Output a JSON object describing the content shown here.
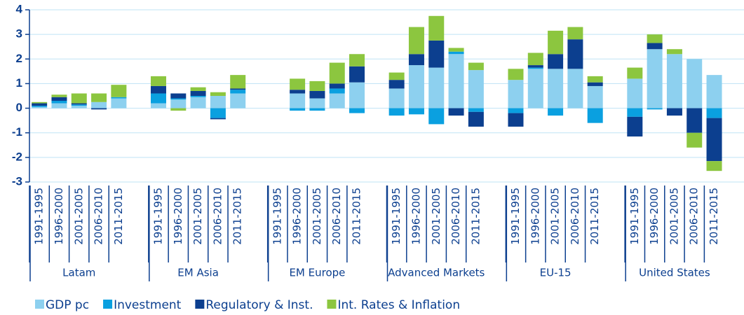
{
  "chart_data": {
    "type": "bar",
    "stacked": true,
    "groups": [
      "Latam",
      "EM Asia",
      "EM Europe",
      "Advanced Markets",
      "EU-15",
      "United States"
    ],
    "categories": [
      "1991-1995",
      "1996-2000",
      "2001-2005",
      "2006-2010",
      "2011-2015",
      "1991-1995",
      "1996-2000",
      "2001-2005",
      "2006-2010",
      "2011-2015",
      "1991-1995",
      "1996-2000",
      "2001-2005",
      "2006-2010",
      "2011-2015",
      "1991-1995",
      "1996-2000",
      "2001-2005",
      "2006-2010",
      "2011-2015",
      "1991-1995",
      "1996-2000",
      "2001-2005",
      "2006-2010",
      "2011-2015",
      "1991-1995",
      "1996-2000",
      "2001-2005",
      "2006-2010",
      "2011-2015"
    ],
    "series": [
      {
        "name": "GDP pc",
        "color": "#8dd0ef",
        "values": [
          0.05,
          0.2,
          0.1,
          0.25,
          0.4,
          0.2,
          0.35,
          0.45,
          0.5,
          0.6,
          null,
          0.6,
          0.4,
          0.6,
          1.05,
          0.8,
          1.75,
          1.65,
          2.2,
          1.55,
          1.15,
          1.6,
          1.6,
          1.6,
          0.9,
          1.2,
          2.4,
          2.2,
          2.0,
          1.35
        ]
      },
      {
        "name": "Investment",
        "color": "#0aa0e0",
        "values": [
          0.05,
          0.1,
          0.05,
          0,
          0.05,
          0.4,
          0.05,
          0.05,
          -0.4,
          0.15,
          null,
          -0.1,
          -0.1,
          0.2,
          -0.2,
          -0.3,
          -0.25,
          -0.65,
          0.1,
          -0.15,
          -0.2,
          0.05,
          -0.3,
          0,
          -0.6,
          -0.35,
          -0.05,
          0,
          0,
          -0.4
        ]
      },
      {
        "name": "Regulatory & Inst.",
        "color": "#0c3f8f",
        "values": [
          0.1,
          0.15,
          0.05,
          -0.05,
          0,
          0.3,
          0.2,
          0.2,
          -0.05,
          0.05,
          null,
          0.15,
          0.3,
          0.2,
          0.65,
          0.35,
          0.45,
          1.1,
          -0.3,
          -0.6,
          -0.55,
          0.1,
          0.6,
          1.2,
          0.15,
          -0.8,
          0.25,
          -0.3,
          -1.0,
          -1.75
        ]
      },
      {
        "name": "Int. Rates & Inflation",
        "color": "#8cc63f",
        "values": [
          0.05,
          0.1,
          0.4,
          0.35,
          0.5,
          0.4,
          -0.1,
          0.15,
          0.15,
          0.55,
          null,
          0.45,
          0.4,
          0.85,
          0.5,
          0.3,
          1.1,
          1.0,
          0.15,
          0.3,
          0.45,
          0.5,
          0.95,
          0.5,
          0.25,
          0.45,
          0.35,
          0.2,
          -0.6,
          -0.4
        ]
      }
    ],
    "ylim": [
      -3,
      4
    ],
    "yticks": [
      -3,
      -2,
      -1,
      0,
      1,
      2,
      3,
      4
    ],
    "grid": true
  }
}
